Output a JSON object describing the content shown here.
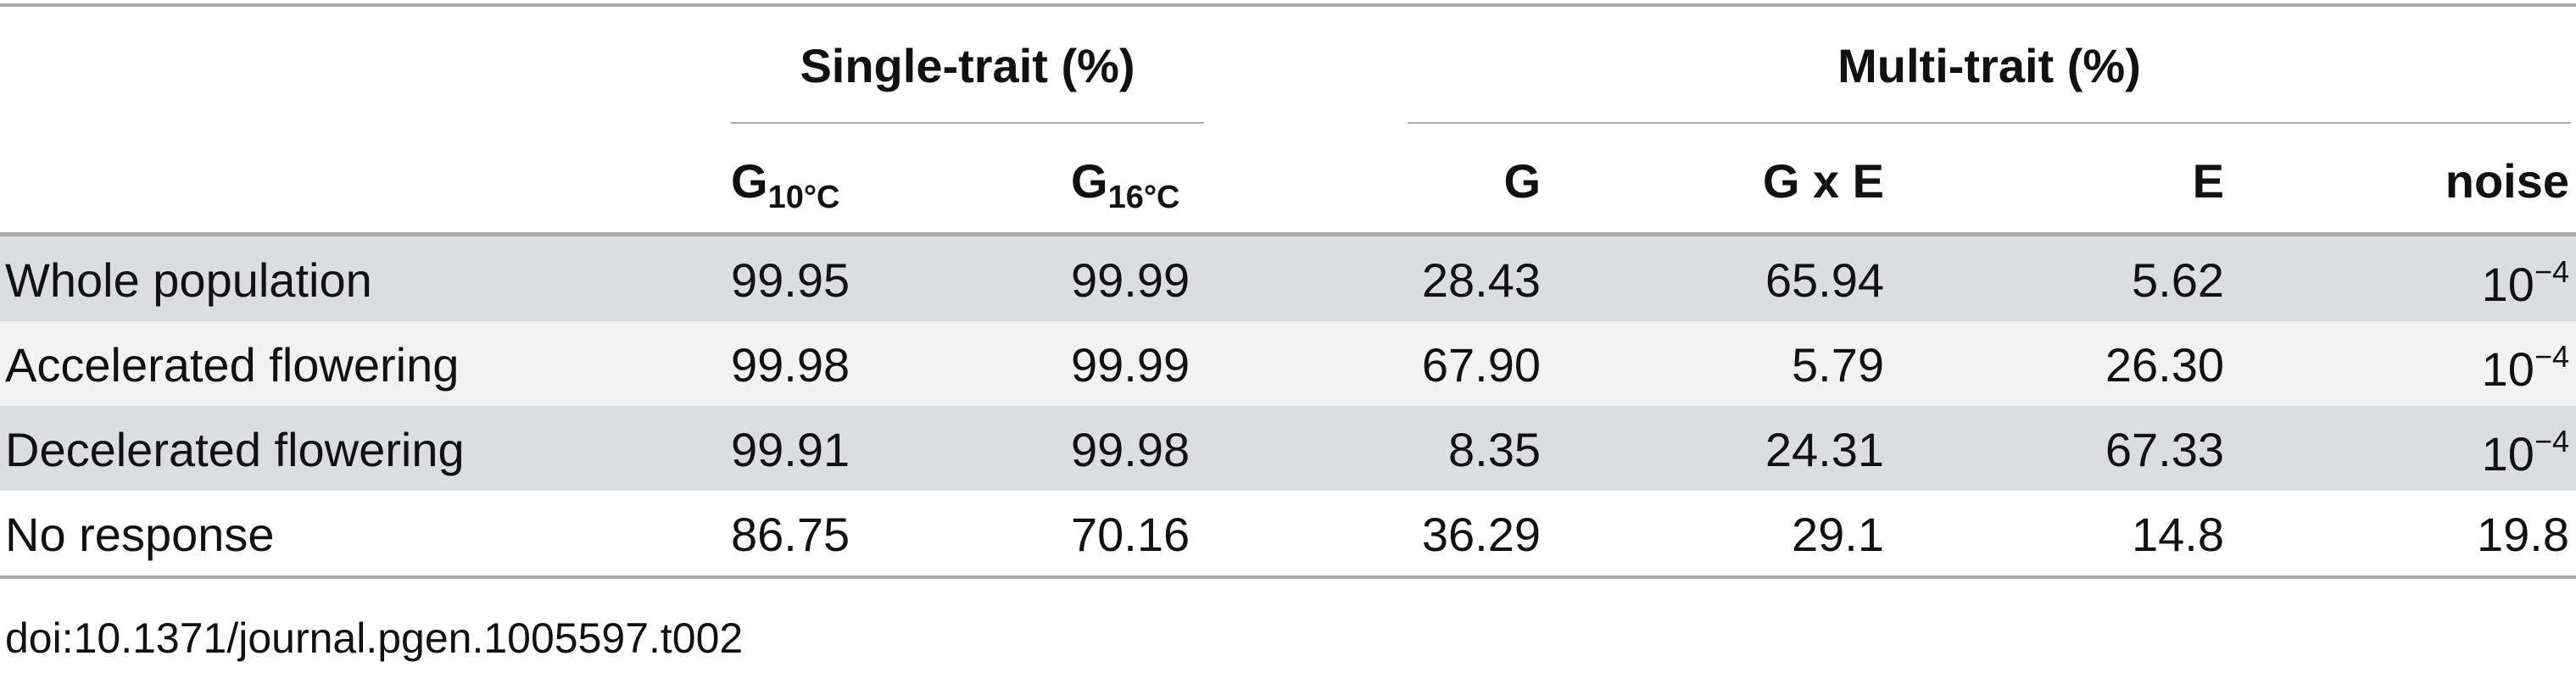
{
  "header": {
    "groups": [
      "Single-trait (%)",
      "Multi-trait (%)"
    ],
    "columns": [
      {
        "text": "G",
        "sub": "10°C"
      },
      {
        "text": "G",
        "sub": "16°C"
      },
      {
        "text": "G"
      },
      {
        "text": "G x E"
      },
      {
        "text": "E"
      },
      {
        "text": "noise"
      }
    ]
  },
  "rows": [
    {
      "label": "Whole population",
      "cells": [
        {
          "text": "99.95"
        },
        {
          "text": "99.99"
        },
        {
          "text": "28.43"
        },
        {
          "text": "65.94"
        },
        {
          "text": "5.62"
        },
        {
          "text": "10",
          "sup": "−4"
        }
      ]
    },
    {
      "label": "Accelerated flowering",
      "cells": [
        {
          "text": "99.98"
        },
        {
          "text": "99.99"
        },
        {
          "text": "67.90"
        },
        {
          "text": "5.79"
        },
        {
          "text": "26.30"
        },
        {
          "text": "10",
          "sup": "−4"
        }
      ]
    },
    {
      "label": "Decelerated flowering",
      "cells": [
        {
          "text": "99.91"
        },
        {
          "text": "99.98"
        },
        {
          "text": "8.35"
        },
        {
          "text": "24.31"
        },
        {
          "text": "67.33"
        },
        {
          "text": "10",
          "sup": "−4"
        }
      ]
    },
    {
      "label": "No response",
      "cells": [
        {
          "text": "86.75"
        },
        {
          "text": "70.16"
        },
        {
          "text": "36.29"
        },
        {
          "text": "29.1"
        },
        {
          "text": "14.8"
        },
        {
          "text": "19.8"
        }
      ]
    }
  ],
  "footer": "doi:10.1371/journal.pgen.1005597.t002"
}
